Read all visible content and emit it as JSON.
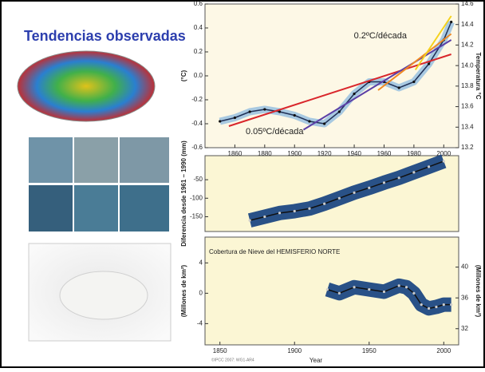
{
  "title": "Tendencias observadas",
  "chart_data": [
    {
      "type": "line",
      "ylabel": "(°C)",
      "y2label": "Temperatura °C",
      "annotations": [
        "0.2ºC/década",
        "0.05ºC/década"
      ],
      "x": [
        1850,
        1860,
        1870,
        1880,
        1890,
        1900,
        1910,
        1920,
        1930,
        1940,
        1950,
        1960,
        1970,
        1980,
        1990,
        2000,
        2005
      ],
      "series": [
        {
          "color": "#1f2f55",
          "values": [
            -0.38,
            -0.35,
            -0.3,
            -0.28,
            -0.3,
            -0.33,
            -0.38,
            -0.4,
            -0.3,
            -0.15,
            -0.05,
            -0.05,
            -0.1,
            -0.05,
            0.1,
            0.3,
            0.45
          ]
        },
        {
          "color": "#d9262b",
          "x": [
            1856,
            2005
          ],
          "values": [
            -0.42,
            0.18
          ]
        },
        {
          "color": "#5b3fa6",
          "x": [
            1906,
            2005
          ],
          "values": [
            -0.45,
            0.3
          ]
        },
        {
          "color": "#f08a24",
          "x": [
            1956,
            2005
          ],
          "values": [
            -0.12,
            0.35
          ]
        },
        {
          "color": "#f5d21c",
          "x": [
            1981,
            2005
          ],
          "values": [
            0.05,
            0.5
          ]
        }
      ],
      "xlim": [
        1840,
        2010
      ],
      "xticks": [
        1860,
        1880,
        1900,
        1920,
        1940,
        1960,
        1980,
        2000
      ],
      "ylim": [
        -0.6,
        0.6
      ],
      "yticks": [
        0.6,
        0.4,
        0.2,
        {
          "value": 0,
          "label": "0.0"
        },
        -0.2,
        -0.4,
        -0.6
      ],
      "y2lim": [
        13.2,
        14.6
      ],
      "y2ticks": [
        14.6,
        14.4,
        14.2,
        {
          "value": 14,
          "label": "14.0"
        },
        13.8,
        13.6,
        13.4,
        13.2
      ]
    },
    {
      "type": "line",
      "ylabel": "Diferencia desde 1961 – 1990 (mm)",
      "x": [
        1870,
        1880,
        1890,
        1900,
        1910,
        1920,
        1930,
        1940,
        1950,
        1960,
        1970,
        1980,
        1990,
        2000
      ],
      "series": [
        {
          "color": "#0d3f7a",
          "values": [
            -160,
            -150,
            -140,
            -135,
            -128,
            -115,
            -100,
            -85,
            -72,
            -58,
            -45,
            -30,
            -15,
            0
          ]
        }
      ],
      "xlim": [
        1840,
        2010
      ],
      "ylim": [
        -190,
        15
      ],
      "yticks": [
        -50,
        -100,
        -150
      ]
    },
    {
      "type": "line",
      "annotation": "Cobertura de Nieve del HEMISFERIO NORTE",
      "ylabel": "(Millones de km²)",
      "y2label": "(Millones de km²)",
      "xlabel": "Year",
      "credit": "©IPCC 2007: WG1-AR4",
      "x": [
        1922,
        1930,
        1940,
        1950,
        1960,
        1970,
        1975,
        1980,
        1985,
        1990,
        1995,
        2000,
        2005
      ],
      "series": [
        {
          "color": "#0d3f7a",
          "values": [
            0.5,
            0,
            0.8,
            0.5,
            0.2,
            1,
            0.8,
            0,
            -1.5,
            -2,
            -1.8,
            -1.5,
            -1.5
          ]
        }
      ],
      "xlim": [
        1840,
        2010
      ],
      "xticks": [
        1850,
        1900,
        1950,
        2000
      ],
      "ylim": [
        -6.8,
        7.4
      ],
      "yticks": [
        4,
        0,
        -4
      ],
      "y2lim": [
        29.9,
        43.9
      ],
      "y2ticks": [
        40,
        36,
        32
      ]
    }
  ]
}
